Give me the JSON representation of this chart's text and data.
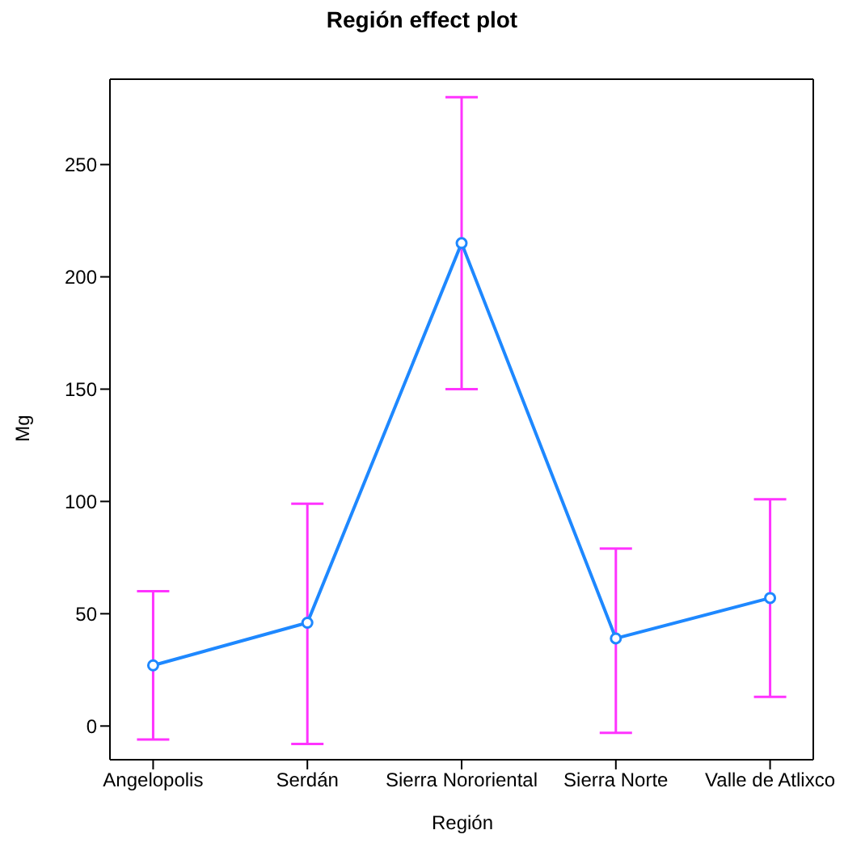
{
  "chart_data": {
    "type": "line",
    "title": "Región effect plot",
    "xlabel": "Región",
    "ylabel": "Mg",
    "categories": [
      "Angelopolis",
      "Serdán",
      "Sierra Nororiental",
      "Sierra Norte",
      "Valle de Atlixco"
    ],
    "series": [
      {
        "color": "#1e88ff",
        "values": [
          27,
          46,
          215,
          39,
          57
        ],
        "errors": [
          [
            -6,
            60
          ],
          [
            -8,
            99
          ],
          [
            150,
            280
          ],
          [
            -3,
            79
          ],
          [
            13,
            101
          ]
        ]
      }
    ],
    "ylim": [
      -15,
      288
    ],
    "yticks": [
      0,
      50,
      100,
      150,
      200,
      250
    ],
    "grid": false,
    "legend": false,
    "marker": "circle",
    "line_style": "solid"
  }
}
